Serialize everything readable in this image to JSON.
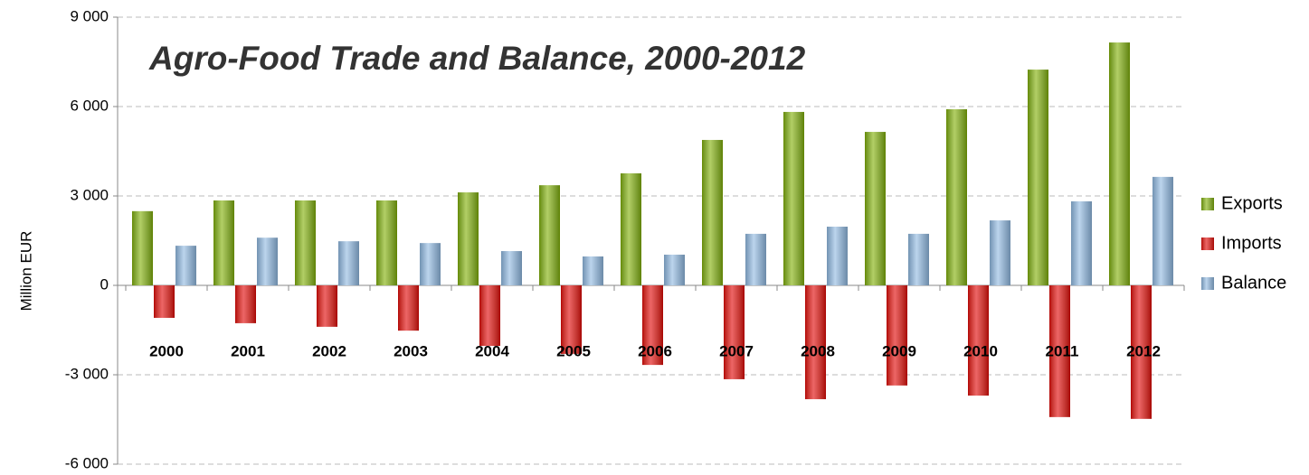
{
  "chart_data": {
    "type": "bar",
    "title": "Agro-Food Trade and Balance, 2000-2012",
    "y_label": "Million EUR",
    "categories": [
      "2000",
      "2001",
      "2002",
      "2003",
      "2004",
      "2005",
      "2006",
      "2007",
      "2008",
      "2009",
      "2010",
      "2011",
      "2012"
    ],
    "series": [
      {
        "name": "Exports",
        "color": "#7fae00",
        "values": [
          2490,
          2850,
          2850,
          2850,
          3120,
          3360,
          3760,
          4880,
          5820,
          5150,
          5910,
          7240,
          8150
        ]
      },
      {
        "name": "Imports",
        "color": "#e00000",
        "values": [
          -1090,
          -1270,
          -1390,
          -1520,
          -2030,
          -2300,
          -2670,
          -3150,
          -3820,
          -3360,
          -3700,
          -4420,
          -4480
        ]
      },
      {
        "name": "Balance",
        "color": "#8fb8e0",
        "values": [
          1330,
          1600,
          1480,
          1420,
          1150,
          970,
          1030,
          1730,
          1970,
          1730,
          2180,
          2820,
          3640
        ]
      }
    ],
    "ylim": [
      -6000,
      9000
    ],
    "yticks": [
      {
        "value": -6000,
        "label": "-6 000"
      },
      {
        "value": -3000,
        "label": "-3 000"
      },
      0,
      {
        "value": 3000,
        "label": "3 000"
      },
      {
        "value": 6000,
        "label": "6 000"
      },
      {
        "value": 9000,
        "label": "9 000"
      }
    ],
    "grid": true,
    "legend": "right"
  }
}
